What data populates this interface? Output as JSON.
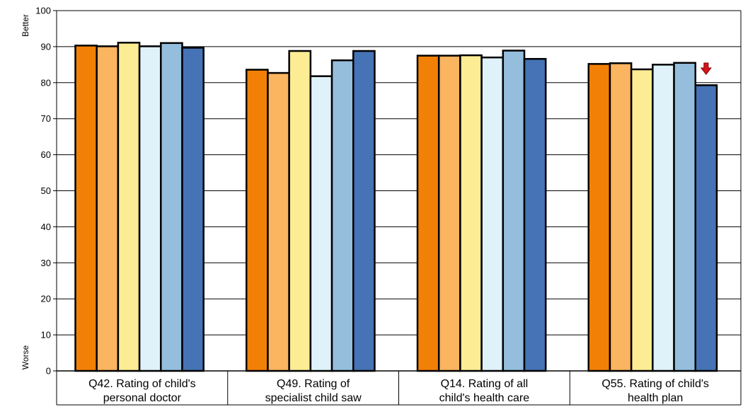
{
  "chart_data": {
    "type": "bar",
    "categories": [
      [
        "Q42. Rating of child's",
        "personal doctor"
      ],
      [
        "Q49. Rating of",
        "specialist child saw"
      ],
      [
        "Q14. Rating of all",
        "child's health care"
      ],
      [
        "Q55. Rating of child's",
        "health plan"
      ]
    ],
    "series": [
      {
        "values": [
          90.3,
          83.6,
          87.5,
          85.2
        ],
        "color": "#F28006"
      },
      {
        "values": [
          90.1,
          82.7,
          87.5,
          85.4
        ],
        "color": "#FBB45F"
      },
      {
        "values": [
          91.1,
          88.8,
          87.6,
          83.7
        ],
        "color": "#FCEC94"
      },
      {
        "values": [
          90.1,
          81.8,
          87.0,
          85.0
        ],
        "color": "#DFF2F9"
      },
      {
        "values": [
          91.0,
          86.2,
          88.9,
          85.5
        ],
        "color": "#95BEDD"
      },
      {
        "values": [
          89.7,
          88.8,
          86.6,
          79.3
        ],
        "color": "#4573B5"
      }
    ],
    "ylim": [
      0,
      100
    ],
    "yticks": [
      "0",
      "10",
      "20",
      "30",
      "40",
      "50",
      "60",
      "70",
      "80",
      "90",
      "100"
    ],
    "y_top_label": "Better",
    "y_bottom_label": "Worse",
    "grid": true,
    "annotations": [
      {
        "type": "down-arrow-icon",
        "category_index": 3,
        "series_index": 5,
        "color": "#D9141B"
      }
    ]
  }
}
